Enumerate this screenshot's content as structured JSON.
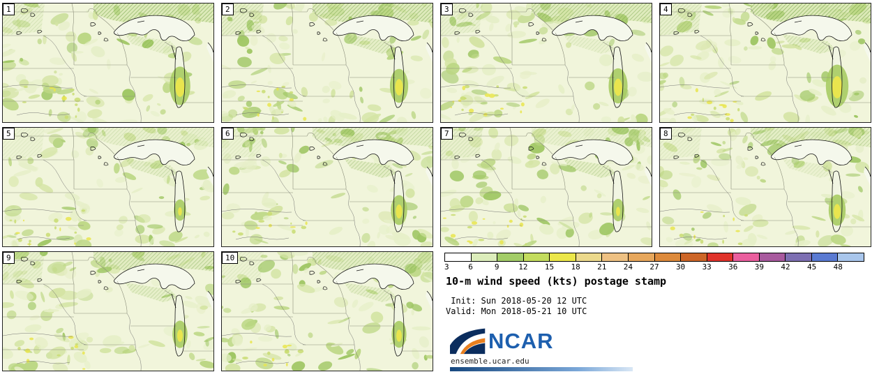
{
  "panels": [
    {
      "id": "1"
    },
    {
      "id": "2"
    },
    {
      "id": "3"
    },
    {
      "id": "4"
    },
    {
      "id": "5"
    },
    {
      "id": "6"
    },
    {
      "id": "7"
    },
    {
      "id": "8"
    },
    {
      "id": "9"
    },
    {
      "id": "10"
    }
  ],
  "colorbar": {
    "ticks": [
      "3",
      "6",
      "9",
      "12",
      "15",
      "18",
      "21",
      "24",
      "27",
      "30",
      "33",
      "36",
      "39",
      "42",
      "45",
      "48"
    ],
    "colors": [
      "#ffffff",
      "#dcedbb",
      "#a3cd68",
      "#c3dc5e",
      "#ece74a",
      "#ecd98c",
      "#eec183",
      "#e7a75c",
      "#dd8a3c",
      "#cd6628",
      "#e0332b",
      "#ea5f9e",
      "#a85a9e",
      "#7d6fb2",
      "#5a7ad2",
      "#a9c6ec"
    ]
  },
  "legend": {
    "title": "10-m wind speed (kts) postage stamp",
    "init_line": "Init: Sun 2018-05-20 12 UTC",
    "valid_line": "Valid: Mon 2018-05-21 10 UTC"
  },
  "branding": {
    "logo_text": "NCAR",
    "site": "ensemble.ucar.edu",
    "logo_navy": "#0b2d5e",
    "logo_orange": "#e87f1f",
    "logo_text_color": "#1d5fae"
  },
  "map_palette": {
    "background": "#f1f5db",
    "greens": [
      "#e6efc8",
      "#d4e4a4",
      "#bcd784",
      "#a0c765"
    ],
    "yellow": "#e9e54e",
    "border_line": "#8d907c",
    "lake_outline": "#141414"
  }
}
